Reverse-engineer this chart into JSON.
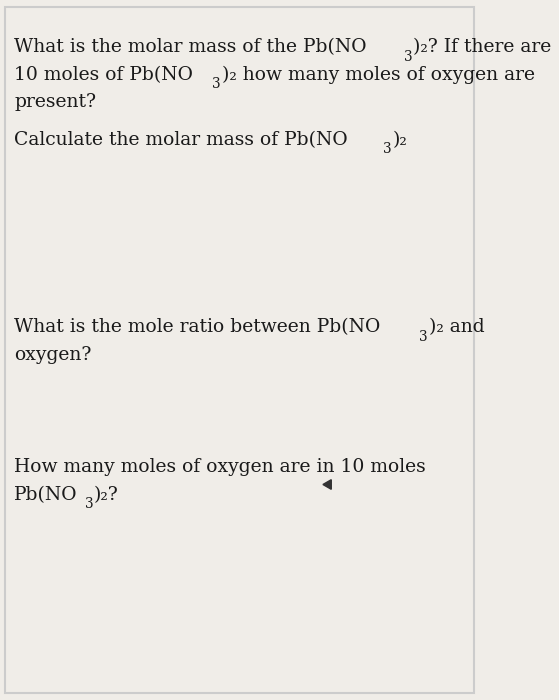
{
  "background_color": "#f0ede8",
  "border_color": "#cccccc",
  "text_color": "#1a1a1a",
  "font_size": 13.5,
  "line1_q1": "What is the molar mass of the Pb(NO",
  "line1_q1_sub": "3",
  "line1_q1b": ")",
  "line1_q1c": "2",
  "line1_q1d": "? If there are",
  "line2_q1": "10 moles of Pb(NO",
  "line2_q1_sub": "3",
  "line2_q1b": ")",
  "line2_q1c": "2",
  "line2_q1d": " how many moles of oxygen are",
  "line3_q1": "present?",
  "line_q2_a": "Calculate the molar mass of Pb(NO",
  "line_q2_a_sub": "3",
  "line_q2_a_b": ")",
  "line_q2_a_c": "2",
  "line_q3_a": "What is the mole ratio between Pb(NO",
  "line_q3_a_sub": "3",
  "line_q3_a_b": ")",
  "line_q3_a_c": "2",
  "line_q3_a_d": " and",
  "line_q3_b": "oxygen?",
  "line_q4_a": "How many moles of oxygen are in 10 moles",
  "line_q4_b": "Pb(NO",
  "line_q4_b_sub": "3",
  "line_q4_b_c": ")",
  "line_q4_b_d": "2",
  "line_q4_b_e": "?"
}
